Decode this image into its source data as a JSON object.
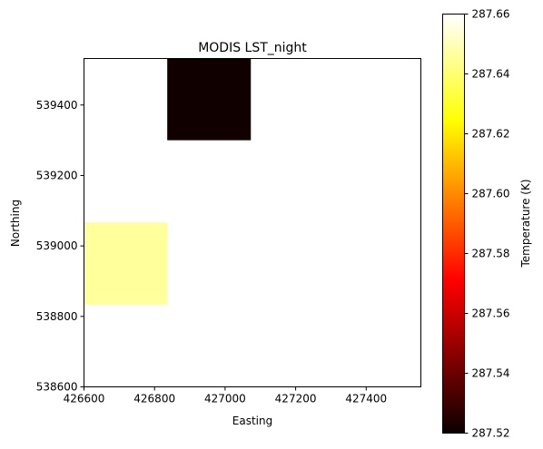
{
  "chart_data": {
    "type": "heatmap",
    "title": "MODIS LST_night",
    "xlabel": "Easting",
    "ylabel": "Northing",
    "xlim": [
      426600,
      427555
    ],
    "ylim": [
      538600,
      539532
    ],
    "x_ticks": [
      426600,
      426800,
      427000,
      427200,
      427400
    ],
    "y_ticks": [
      538600,
      538800,
      539000,
      539200,
      539400
    ],
    "cells": [
      {
        "x0": 426600,
        "x1": 426836,
        "y0": 538834,
        "y1": 539068,
        "value": 287.646
      },
      {
        "x0": 426836,
        "x1": 427073,
        "y0": 539300,
        "y1": 539532,
        "value": 287.521
      }
    ],
    "colorbar": {
      "label": "Temperature (K)",
      "cmap": "hot",
      "vmin": 287.52,
      "vmax": 287.66,
      "ticks": [
        "287.52",
        "287.54",
        "287.56",
        "287.58",
        "287.60",
        "287.62",
        "287.64",
        "287.66"
      ]
    }
  }
}
